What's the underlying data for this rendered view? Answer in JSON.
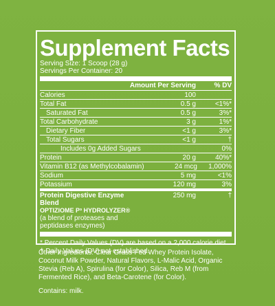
{
  "title": "Supplement Facts",
  "serving_size": "Serving Size: 1 Scoop (28 g)",
  "servings_per_container": "Servings Per Container: 20",
  "header": {
    "amount_label": "Amount Per Serving",
    "dv_label": "% DV"
  },
  "rows": [
    {
      "name": "Calories",
      "amount": "100",
      "dv": ""
    },
    {
      "name": "Total Fat",
      "amount": "0.5 g",
      "dv": "<1%*"
    },
    {
      "name": "Saturated Fat",
      "amount": "0.5 g",
      "dv": "3%*"
    },
    {
      "name": "Total Carbohydrate",
      "amount": "3 g",
      "dv": "1%*"
    },
    {
      "name": "Dietary Fiber",
      "amount": "<1 g",
      "dv": "3%*"
    },
    {
      "name": "Total Sugars",
      "amount": "<1 g",
      "dv": "†"
    },
    {
      "name": "Includes 0g Added Sugars",
      "amount": "",
      "dv": "0%"
    },
    {
      "name": "Protein",
      "amount": "20 g",
      "dv": "40%*"
    },
    {
      "name": "Vitamin B12 (as Methylcobalamin)",
      "amount": "24 mcg",
      "dv": "1,000%"
    },
    {
      "name": "Sodium",
      "amount": "5 mg",
      "dv": "<1%"
    },
    {
      "name": "Potassium",
      "amount": "120 mg",
      "dv": "3%"
    }
  ],
  "blend": {
    "name": "Protein Digestive Enzyme Blend",
    "trademark": "OPTIZIOME P³ HYDROLYZER®",
    "description": "(a blend of proteases and peptidases enzymes)",
    "amount": "250 mg",
    "dv": "†"
  },
  "footnotes": [
    "* Percent Daily Values (DV) are based on a 2,000 calorie diet.",
    "† Daily Values (DV) not established."
  ],
  "other_ingredients": "Other Ingredients: Clear Grass-Fed Whey Protein Isolate, Coconut Milk Powder, Natural Flavors, L-Malic Acid, Organic Stevia (Reb A), Spirulina (for Color), Silica, Reb M (from Fermented Rice), and Beta-Carotene (for Color).",
  "contains": "Contains: milk."
}
